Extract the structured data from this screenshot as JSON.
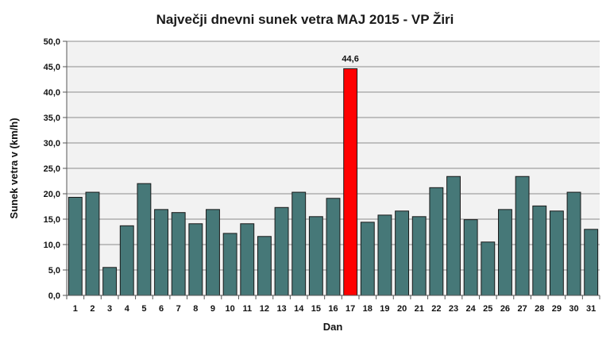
{
  "chart_data": {
    "type": "bar",
    "title": "Največji dnevni sunek vetra MAJ 2015 - VP Žiri",
    "xlabel": "Dan",
    "ylabel": "Sunek vetra v (km/h)",
    "ylim": [
      0,
      50
    ],
    "ytick_step": 5,
    "ytick_labels": [
      "0,0",
      "5,0",
      "10,0",
      "15,0",
      "20,0",
      "25,0",
      "30,0",
      "35,0",
      "40,0",
      "45,0",
      "50,0"
    ],
    "grid": true,
    "legend": "none",
    "categories": [
      "1",
      "2",
      "3",
      "4",
      "5",
      "6",
      "7",
      "8",
      "9",
      "10",
      "11",
      "12",
      "13",
      "14",
      "15",
      "16",
      "17",
      "18",
      "19",
      "20",
      "21",
      "22",
      "23",
      "24",
      "25",
      "26",
      "27",
      "28",
      "29",
      "30",
      "31"
    ],
    "values": [
      19.3,
      20.3,
      5.5,
      13.7,
      22.0,
      16.9,
      16.3,
      14.1,
      16.9,
      12.2,
      14.1,
      11.6,
      17.3,
      20.3,
      15.5,
      19.1,
      44.6,
      14.4,
      15.8,
      16.6,
      15.5,
      21.2,
      23.4,
      14.9,
      10.5,
      16.9,
      23.4,
      17.6,
      16.6,
      20.3,
      13.0
    ],
    "highlight_index": 16,
    "data_labels": [
      {
        "index": 16,
        "text": "44,6"
      }
    ],
    "colors": {
      "bar": "#467878",
      "highlight": "#ff0000",
      "bar_edge": "#1a1a1a",
      "plot_background": "#f2f2f2",
      "gridline": "#8c8c8c"
    }
  }
}
